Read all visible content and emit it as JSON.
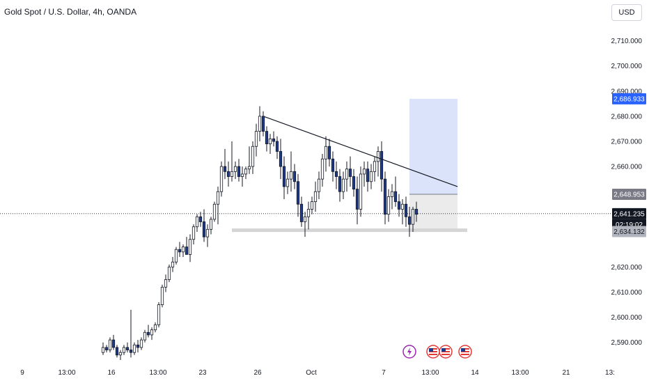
{
  "header": {
    "title": "Gold Spot / U.S. Dollar, 4h, OANDA",
    "currency": "USD"
  },
  "chart_data": {
    "type": "candlestick",
    "ylim": [
      2583,
      2716
    ],
    "y_ticks": [
      {
        "value": 2590,
        "label": "2,590.000"
      },
      {
        "value": 2600,
        "label": "2,600.000"
      },
      {
        "value": 2610,
        "label": "2,610.000"
      },
      {
        "value": 2620,
        "label": "2,620.000"
      },
      {
        "value": 2660,
        "label": "2,660.000"
      },
      {
        "value": 2670,
        "label": "2,670.000"
      },
      {
        "value": 2680,
        "label": "2,680.000"
      },
      {
        "value": 2690,
        "label": "2,690.000"
      },
      {
        "value": 2700,
        "label": "2,700.000"
      },
      {
        "value": 2710,
        "label": "2,710.000"
      }
    ],
    "x_ticks": [
      "9",
      "13:00",
      "16",
      "13:00",
      "23",
      "26",
      "Oct",
      "7",
      "13:00",
      "14",
      "13:00",
      "21",
      "13:"
    ],
    "price_tags": [
      {
        "name": "target",
        "value": 2686.933,
        "label": "2,686.933",
        "bg": "#2962ff",
        "fg": "#ffffff"
      },
      {
        "name": "entry",
        "value": 2648.953,
        "label": "2,648.953",
        "bg": "#787b86",
        "fg": "#ffffff"
      },
      {
        "name": "current",
        "value": 2641.235,
        "label": "2,641.235",
        "bg": "#131722",
        "fg": "#ffffff"
      },
      {
        "name": "stop",
        "value": 2634.132,
        "label": "2,634.132",
        "bg": "#b2b5be",
        "fg": "#131722"
      }
    ],
    "countdown": "02:19:02",
    "current_price": 2641.235,
    "trendline": [
      [
        2679.8,
        0
      ],
      [
        2652.0,
        1
      ]
    ],
    "support_level": 2634.5,
    "position": {
      "target": 2686.933,
      "entry": 2648.953,
      "stop": 2634.132
    },
    "colors": {
      "up": "#ffffff",
      "down": "#1e3a8a",
      "wick": "#131722",
      "target_zone": "#dbe3fb",
      "stop_zone": "#ebebeb",
      "support": "#d5d5d5"
    },
    "candles": [
      [
        2586,
        2590,
        2585,
        2588
      ],
      [
        2588,
        2589,
        2586,
        2587
      ],
      [
        2587,
        2592,
        2586,
        2591
      ],
      [
        2591,
        2593,
        2587,
        2588
      ],
      [
        2588,
        2589,
        2584,
        2585
      ],
      [
        2585,
        2587,
        2583,
        2586
      ],
      [
        2586,
        2589,
        2585,
        2588
      ],
      [
        2588,
        2590,
        2586,
        2587
      ],
      [
        2587,
        2603,
        2584,
        2586
      ],
      [
        2586,
        2590,
        2585,
        2589
      ],
      [
        2589,
        2591,
        2586,
        2588
      ],
      [
        2588,
        2592,
        2587,
        2591
      ],
      [
        2591,
        2595,
        2590,
        2594
      ],
      [
        2594,
        2597,
        2592,
        2593
      ],
      [
        2593,
        2596,
        2591,
        2595
      ],
      [
        2595,
        2598,
        2594,
        2597
      ],
      [
        2597,
        2606,
        2596,
        2605
      ],
      [
        2605,
        2613,
        2604,
        2612
      ],
      [
        2612,
        2617,
        2610,
        2615
      ],
      [
        2615,
        2621,
        2614,
        2620
      ],
      [
        2620,
        2624,
        2618,
        2622
      ],
      [
        2622,
        2628,
        2621,
        2627
      ],
      [
        2627,
        2630,
        2624,
        2626
      ],
      [
        2626,
        2629,
        2624,
        2628
      ],
      [
        2628,
        2632,
        2626,
        2625
      ],
      [
        2625,
        2633,
        2622,
        2631
      ],
      [
        2631,
        2637,
        2629,
        2636
      ],
      [
        2636,
        2641,
        2634,
        2640
      ],
      [
        2640,
        2642,
        2636,
        2638
      ],
      [
        2638,
        2643,
        2630,
        2632
      ],
      [
        2632,
        2637,
        2628,
        2635
      ],
      [
        2635,
        2640,
        2633,
        2639
      ],
      [
        2639,
        2646,
        2638,
        2645
      ],
      [
        2645,
        2652,
        2637,
        2650
      ],
      [
        2650,
        2662,
        2648,
        2660
      ],
      [
        2660,
        2667,
        2655,
        2658
      ],
      [
        2658,
        2662,
        2652,
        2656
      ],
      [
        2656,
        2670,
        2654,
        2658
      ],
      [
        2658,
        2662,
        2655,
        2660
      ],
      [
        2660,
        2663,
        2654,
        2656
      ],
      [
        2656,
        2660,
        2652,
        2657
      ],
      [
        2657,
        2660,
        2655,
        2659
      ],
      [
        2659,
        2668,
        2657,
        2660
      ],
      [
        2660,
        2670,
        2657,
        2668
      ],
      [
        2668,
        2677,
        2664,
        2674
      ],
      [
        2674,
        2684,
        2670,
        2680
      ],
      [
        2680,
        2682,
        2672,
        2674
      ],
      [
        2674,
        2676,
        2666,
        2669
      ],
      [
        2669,
        2673,
        2665,
        2671
      ],
      [
        2671,
        2674,
        2668,
        2670
      ],
      [
        2670,
        2672,
        2663,
        2666
      ],
      [
        2666,
        2671,
        2655,
        2660
      ],
      [
        2660,
        2664,
        2647,
        2652
      ],
      [
        2652,
        2658,
        2649,
        2655
      ],
      [
        2655,
        2666,
        2650,
        2658
      ],
      [
        2658,
        2661,
        2651,
        2654
      ],
      [
        2654,
        2657,
        2640,
        2645
      ],
      [
        2645,
        2648,
        2636,
        2638
      ],
      [
        2638,
        2642,
        2632,
        2640
      ],
      [
        2640,
        2646,
        2635,
        2643
      ],
      [
        2643,
        2648,
        2641,
        2646
      ],
      [
        2646,
        2654,
        2642,
        2650
      ],
      [
        2650,
        2658,
        2647,
        2655
      ],
      [
        2655,
        2665,
        2652,
        2663
      ],
      [
        2663,
        2672,
        2658,
        2668
      ],
      [
        2668,
        2671,
        2660,
        2663
      ],
      [
        2663,
        2666,
        2654,
        2658
      ],
      [
        2658,
        2662,
        2651,
        2656
      ],
      [
        2656,
        2659,
        2646,
        2650
      ],
      [
        2650,
        2658,
        2647,
        2655
      ],
      [
        2655,
        2662,
        2650,
        2659
      ],
      [
        2659,
        2664,
        2652,
        2656
      ],
      [
        2656,
        2659,
        2648,
        2651
      ],
      [
        2651,
        2656,
        2637,
        2643
      ],
      [
        2643,
        2660,
        2640,
        2657
      ],
      [
        2657,
        2662,
        2652,
        2659
      ],
      [
        2659,
        2662,
        2650,
        2654
      ],
      [
        2654,
        2661,
        2651,
        2658
      ],
      [
        2658,
        2664,
        2654,
        2662
      ],
      [
        2662,
        2668,
        2656,
        2666
      ],
      [
        2666,
        2670,
        2650,
        2655
      ],
      [
        2655,
        2658,
        2637,
        2641
      ],
      [
        2641,
        2651,
        2638,
        2648
      ],
      [
        2648,
        2653,
        2643,
        2650
      ],
      [
        2650,
        2656,
        2644,
        2646
      ],
      [
        2646,
        2649,
        2640,
        2643
      ],
      [
        2643,
        2647,
        2637,
        2645
      ],
      [
        2645,
        2648,
        2636,
        2640
      ],
      [
        2640,
        2644,
        2632,
        2637
      ],
      [
        2637,
        2644,
        2634,
        2643
      ],
      [
        2643,
        2646,
        2638,
        2641
      ]
    ]
  }
}
